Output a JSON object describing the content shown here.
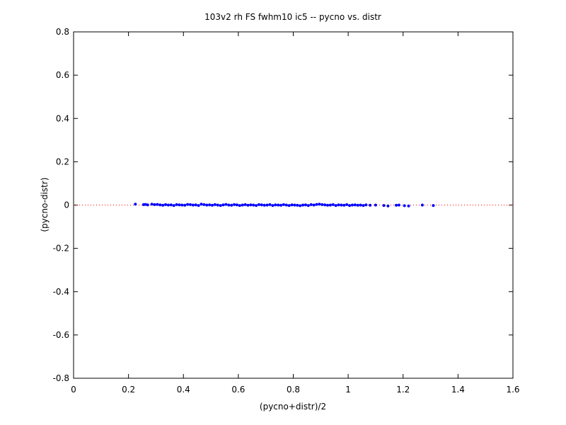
{
  "chart_data": {
    "type": "scatter",
    "title": "103v2 rh FS fwhm10 ic5 -- pycno vs. distr",
    "xlabel": "(pycno+distr)/2",
    "ylabel": "(pycno-distr)",
    "xlim": [
      0,
      1.6
    ],
    "ylim": [
      -0.8,
      0.8
    ],
    "xticks": [
      0,
      0.2,
      0.4,
      0.6,
      0.8,
      1,
      1.2,
      1.4,
      1.6
    ],
    "yticks": [
      -0.8,
      -0.6,
      -0.4,
      -0.2,
      0,
      0.2,
      0.4,
      0.6,
      0.8
    ],
    "grid": false,
    "reference_line": {
      "y": 0,
      "color": "#ff0000"
    },
    "series": [
      {
        "color": "#0000ff",
        "x": [
          0.225,
          0.255,
          0.262,
          0.27,
          0.285,
          0.295,
          0.305,
          0.315,
          0.325,
          0.335,
          0.345,
          0.355,
          0.365,
          0.375,
          0.385,
          0.395,
          0.405,
          0.415,
          0.425,
          0.435,
          0.445,
          0.455,
          0.465,
          0.475,
          0.485,
          0.495,
          0.505,
          0.515,
          0.525,
          0.535,
          0.545,
          0.555,
          0.565,
          0.575,
          0.585,
          0.595,
          0.605,
          0.615,
          0.625,
          0.635,
          0.645,
          0.655,
          0.665,
          0.675,
          0.685,
          0.695,
          0.705,
          0.715,
          0.725,
          0.735,
          0.745,
          0.755,
          0.765,
          0.775,
          0.785,
          0.795,
          0.805,
          0.815,
          0.825,
          0.835,
          0.845,
          0.855,
          0.865,
          0.875,
          0.885,
          0.895,
          0.905,
          0.915,
          0.925,
          0.935,
          0.945,
          0.955,
          0.965,
          0.975,
          0.985,
          0.995,
          1.005,
          1.015,
          1.025,
          1.035,
          1.045,
          1.055,
          1.065,
          1.08,
          1.1,
          1.13,
          1.145,
          1.175,
          1.185,
          1.205,
          1.22,
          1.27,
          1.31
        ],
        "values": [
          0.004,
          0.002,
          0.003,
          0.001,
          0.004,
          0.002,
          0.003,
          0.001,
          -0.001,
          0.002,
          0.0,
          0.001,
          -0.002,
          0.002,
          0.001,
          0.0,
          -0.001,
          0.003,
          0.002,
          0.0,
          0.001,
          -0.002,
          0.004,
          0.002,
          0.0,
          0.001,
          -0.001,
          0.002,
          0.0,
          -0.002,
          0.001,
          0.003,
          0.0,
          -0.001,
          0.002,
          0.001,
          -0.002,
          0.0,
          0.002,
          -0.001,
          0.001,
          0.0,
          -0.002,
          0.002,
          0.001,
          -0.001,
          0.0,
          0.002,
          -0.002,
          0.001,
          0.0,
          -0.001,
          0.002,
          0.0,
          -0.002,
          0.001,
          0.0,
          -0.001,
          -0.003,
          0.0,
          0.001,
          -0.002,
          0.002,
          0.0,
          0.003,
          0.004,
          0.002,
          0.001,
          -0.001,
          0.0,
          0.002,
          -0.002,
          0.001,
          0.0,
          -0.001,
          0.002,
          -0.002,
          0.0,
          0.001,
          -0.001,
          0.0,
          -0.002,
          0.001,
          -0.001,
          0.0,
          -0.002,
          -0.004,
          -0.001,
          0.0,
          -0.003,
          -0.004,
          0.0,
          -0.002
        ]
      }
    ]
  }
}
